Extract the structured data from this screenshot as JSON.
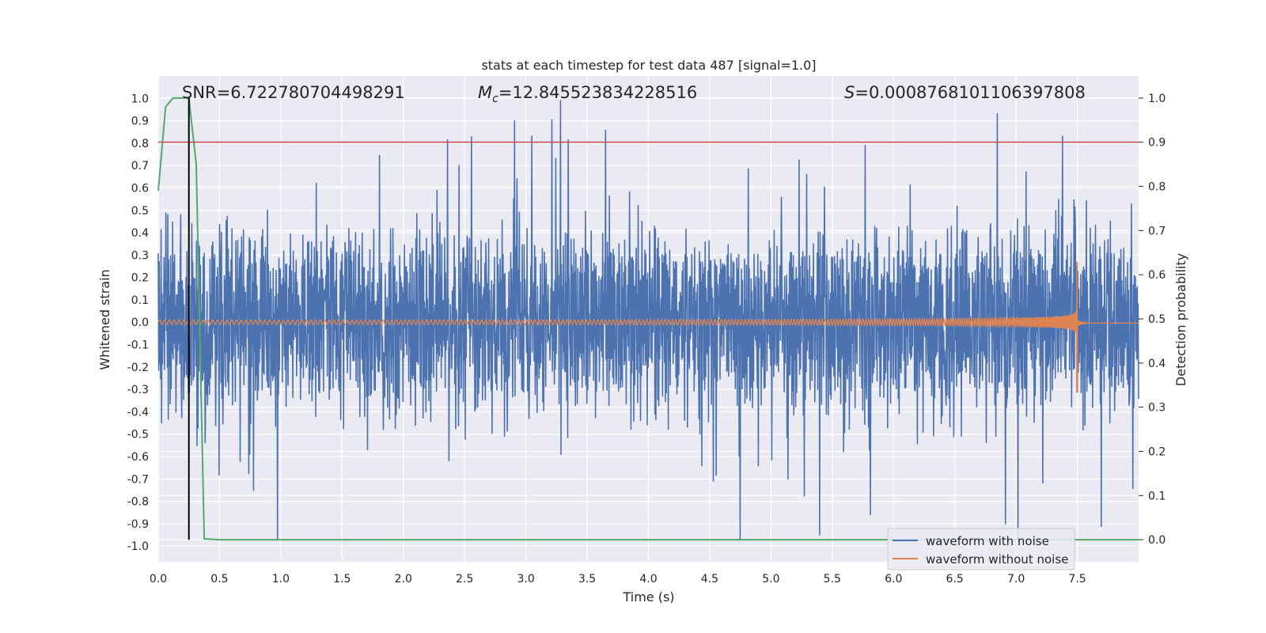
{
  "chart_data": {
    "type": "line",
    "title": "stats at each timestep for test data 487 [signal=1.0]",
    "xlabel": "Time (s)",
    "ylabel": "Whitened strain",
    "y2label": "Detection probability",
    "xlim": [
      0.0,
      8.0
    ],
    "ylim": [
      -1.07,
      1.1
    ],
    "y2lim": [
      -0.05,
      1.05
    ],
    "x_ticks": [
      0.0,
      0.5,
      1.0,
      1.5,
      2.0,
      2.5,
      3.0,
      3.5,
      4.0,
      4.5,
      5.0,
      5.5,
      6.0,
      6.5,
      7.0,
      7.5
    ],
    "x_tick_labels": [
      "0.0",
      "0.5",
      "1.0",
      "1.5",
      "2.0",
      "2.5",
      "3.0",
      "3.5",
      "4.0",
      "4.5",
      "5.0",
      "5.5",
      "6.0",
      "6.5",
      "7.0",
      "7.5"
    ],
    "y_ticks": [
      1.0,
      0.9,
      0.8,
      0.7,
      0.6,
      0.5,
      0.4,
      0.3,
      0.2,
      0.1,
      0.0,
      -0.1,
      -0.2,
      -0.3,
      -0.4,
      -0.5,
      -0.6,
      -0.7,
      -0.8,
      -0.9,
      -1.0
    ],
    "y_tick_labels": [
      "1.0",
      "0.9",
      "0.8",
      "0.7",
      "0.6",
      "0.5",
      "0.4",
      "0.3",
      "0.2",
      "0.1",
      "0.0",
      "-0.1",
      "-0.2",
      "-0.3",
      "-0.4",
      "-0.5",
      "-0.6",
      "-0.7",
      "-0.8",
      "-0.9",
      "-1.0"
    ],
    "y2_ticks": [
      1.0,
      0.9,
      0.8,
      0.7,
      0.6,
      0.5,
      0.4,
      0.3,
      0.2,
      0.1,
      0.0
    ],
    "y2_tick_labels": [
      "1.0",
      "0.9",
      "0.8",
      "0.7",
      "0.6",
      "0.5",
      "0.4",
      "0.3",
      "0.2",
      "0.1",
      "0.0"
    ],
    "grid": true,
    "legend_position": "bottom-right",
    "annotations": {
      "snr": "SNR=6.722780704498291",
      "mc_symbol": "M",
      "mc_sub": "c",
      "mc_value": "=12.845523834228516",
      "s_symbol": "S",
      "s_value": "=0.0008768101106397808"
    },
    "threshold": {
      "axis": "y2",
      "value": 0.9,
      "color": "#c44e52"
    },
    "marker_line": {
      "x": 0.25,
      "y2_range": [
        0.0,
        1.0
      ],
      "color": "#000000"
    },
    "series": [
      {
        "name": "waveform with noise",
        "color": "#4c72b0",
        "axis": "y",
        "description_values": {
          "t_start": 0.0,
          "t_end": 8.0,
          "samples": 2048,
          "core_amplitude": 0.2,
          "peak_max": 1.0,
          "peak_min": -0.97
        }
      },
      {
        "name": "waveform without noise",
        "color": "#dd8452",
        "axis": "y",
        "chirp": {
          "t_start": 0.0,
          "t_merger": 7.5,
          "t_end": 8.0,
          "f_start": 25,
          "amp_start": 0.01,
          "amp_peak_pos": 0.27,
          "amp_peak_neg": -0.31
        }
      },
      {
        "name": "detection probability",
        "color": "#55a868",
        "axis": "y2",
        "x": [
          0.0,
          0.06,
          0.12,
          0.18,
          0.25,
          0.31,
          0.375,
          0.5,
          1.0,
          2.0,
          3.0,
          4.0,
          5.0,
          6.0,
          7.0,
          7.5,
          7.6,
          8.0
        ],
        "values": [
          0.79,
          0.98,
          1.0,
          1.0,
          1.0,
          0.85,
          0.002,
          0.0,
          0.0,
          0.0,
          0.0,
          0.0,
          0.0,
          0.0,
          0.0,
          0.0,
          0.0,
          0.0
        ]
      }
    ],
    "legend": [
      "waveform with noise",
      "waveform without noise"
    ]
  }
}
